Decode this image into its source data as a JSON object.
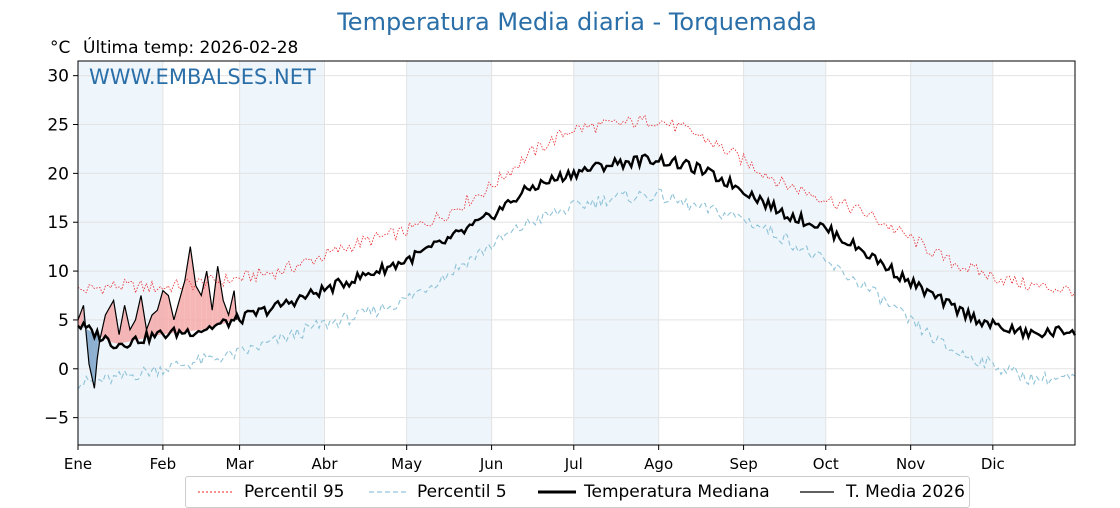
{
  "header": {
    "title": "Temperatura Media diaria - Torquemada",
    "unit": "°C",
    "last_temp": "Última temp: 2026-02-28",
    "watermark": "WWW.EMBALSES.NET"
  },
  "chart_data": {
    "type": "line",
    "title": "Temperatura Media diaria - Torquemada",
    "ylabel": "°C",
    "ylim": [
      -7.8,
      31.5
    ],
    "xlim": [
      1,
      365
    ],
    "yticks": [
      -5,
      0,
      5,
      10,
      15,
      20,
      25,
      30
    ],
    "months": [
      "Ene",
      "Feb",
      "Mar",
      "Abr",
      "May",
      "Jun",
      "Jul",
      "Ago",
      "Sep",
      "Oct",
      "Nov",
      "Dic"
    ],
    "grid": true,
    "legend_position": "bottom-center",
    "colors": {
      "p95": "#e8262a",
      "p5": "#8fc3d8",
      "median": "#000000",
      "current": "#000000",
      "fill_above": "#f4a9a9",
      "fill_below": "#7ba3c8",
      "band": "#eef5fb",
      "watermark": "#2b6fa8"
    },
    "series": [
      {
        "name": "Percentil 95",
        "style": "dotted-red",
        "x": [
          1,
          15,
          31,
          46,
          59,
          75,
          90,
          105,
          120,
          135,
          151,
          166,
          181,
          196,
          212,
          227,
          243,
          258,
          273,
          288,
          304,
          319,
          334,
          349,
          365
        ],
        "values": [
          8.0,
          8.5,
          8.3,
          8.8,
          9.2,
          10.0,
          11.5,
          13.0,
          14.0,
          15.8,
          18.5,
          22.0,
          24.5,
          25.0,
          25.5,
          24.0,
          21.5,
          19.0,
          17.5,
          16.0,
          13.5,
          11.0,
          9.5,
          8.5,
          8.0
        ]
      },
      {
        "name": "Percentil 5",
        "style": "dashed-lightblue",
        "x": [
          1,
          15,
          31,
          46,
          59,
          75,
          90,
          105,
          120,
          135,
          151,
          166,
          181,
          196,
          212,
          227,
          243,
          258,
          273,
          288,
          304,
          319,
          334,
          349,
          365
        ],
        "values": [
          -1.5,
          -1.0,
          0.0,
          0.8,
          1.5,
          3.0,
          4.5,
          5.5,
          7.0,
          9.5,
          12.5,
          15.0,
          16.5,
          17.5,
          17.8,
          16.5,
          15.5,
          13.5,
          11.0,
          8.5,
          5.0,
          2.0,
          0.5,
          -1.0,
          -1.0
        ]
      },
      {
        "name": "Temperatura Mediana",
        "style": "thick-black",
        "x": [
          1,
          15,
          31,
          46,
          59,
          75,
          90,
          105,
          120,
          135,
          151,
          166,
          181,
          196,
          212,
          227,
          243,
          258,
          273,
          288,
          304,
          319,
          334,
          349,
          365
        ],
        "values": [
          4.5,
          2.5,
          3.5,
          4.0,
          5.0,
          6.5,
          8.0,
          9.5,
          11.0,
          13.0,
          15.5,
          18.5,
          20.0,
          21.0,
          21.5,
          20.5,
          18.5,
          16.0,
          14.5,
          12.0,
          9.0,
          6.5,
          4.5,
          3.5,
          4.0
        ]
      },
      {
        "name": "T. Media 2026",
        "style": "thin-black",
        "x": [
          1,
          3,
          5,
          7,
          8,
          9,
          11,
          14,
          16,
          18,
          20,
          22,
          24,
          26,
          28,
          30,
          32,
          34,
          36,
          38,
          40,
          42,
          44,
          46,
          48,
          50,
          52,
          54,
          56,
          58,
          59
        ],
        "values": [
          5.0,
          6.5,
          0.5,
          -2.0,
          1.0,
          3.0,
          5.5,
          7.0,
          3.5,
          6.5,
          4.0,
          5.0,
          7.5,
          4.0,
          5.5,
          6.0,
          8.0,
          7.5,
          5.0,
          7.0,
          9.0,
          12.5,
          8.5,
          7.5,
          10.0,
          6.0,
          10.5,
          7.0,
          5.5,
          8.0,
          5.0
        ]
      }
    ]
  },
  "legend": {
    "items": [
      {
        "label": "Percentil 95"
      },
      {
        "label": "Percentil 5"
      },
      {
        "label": "Temperatura Mediana"
      },
      {
        "label": "T. Media 2026"
      }
    ]
  }
}
